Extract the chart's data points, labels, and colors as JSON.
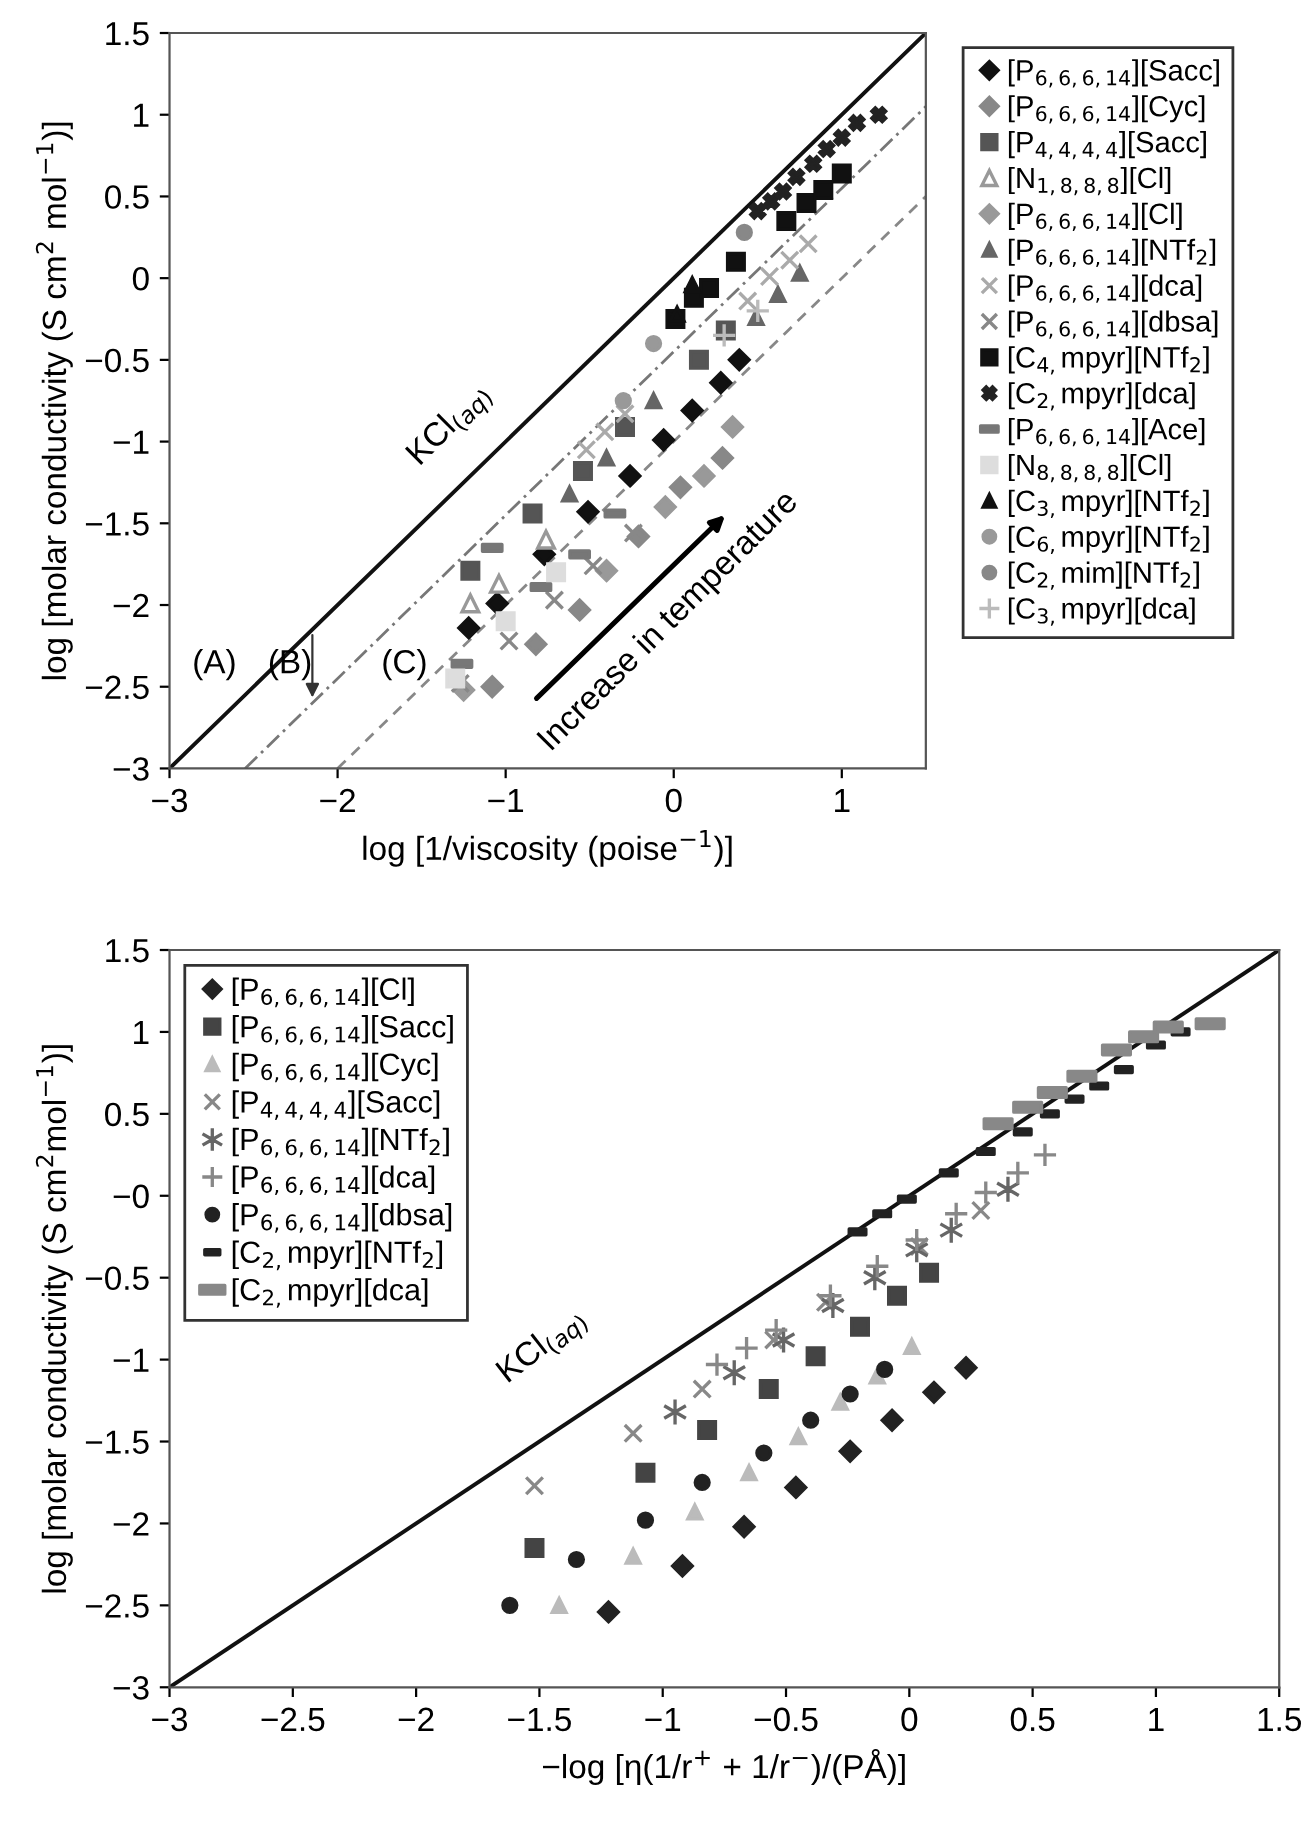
{
  "chart_data": [
    {
      "type": "scatter",
      "xlabel": "log [1/viscosity (poise$^{−1}$)]",
      "ylabel": "log [molar conductivity (S cm$^{2}$ mol$^{−1}$)]",
      "xlim": [
        -3,
        1.5
      ],
      "ylim": [
        -3,
        1.5
      ],
      "xticks": [
        {
          "value": -3,
          "label": "−3"
        },
        {
          "value": -2,
          "label": "−2"
        },
        {
          "value": -1,
          "label": "−1"
        },
        {
          "value": 0,
          "label": "0"
        },
        {
          "value": 1,
          "label": "1"
        }
      ],
      "yticks": [
        {
          "value": -3,
          "label": "−3"
        },
        {
          "value": -2.5,
          "label": "−2.5"
        },
        {
          "value": -2,
          "label": "−2"
        },
        {
          "value": -1.5,
          "label": "−1.5"
        },
        {
          "value": -1,
          "label": "−1"
        },
        {
          "value": -0.5,
          "label": "−0.5"
        },
        {
          "value": 0,
          "label": "0"
        },
        {
          "value": 0.5,
          "label": "0.5"
        },
        {
          "value": 1,
          "label": "1"
        },
        {
          "value": 1.5,
          "label": "1.5"
        }
      ],
      "grid": false,
      "legend": "right",
      "annotations": [
        "KCl$_{(aq)}$",
        "(A)",
        "(B)",
        "(C)",
        "Increase in temperature"
      ],
      "series": [
        {
          "type": "line",
          "color": "#111111",
          "line_style": "solid",
          "x": [
            -3,
            1.5
          ],
          "values": [
            -3,
            1.5
          ]
        },
        {
          "type": "line",
          "color": "#777777",
          "line_style": "dashdot",
          "x": [
            -2.55,
            1.5
          ],
          "values": [
            -3,
            1.05
          ]
        },
        {
          "type": "line",
          "color": "#888888",
          "line_style": "dashed",
          "x": [
            -2.0,
            1.5
          ],
          "values": [
            -3,
            0.5
          ]
        },
        {
          "name": "[P$_{6,6,6,14}$][Sacc]",
          "marker": "diamond",
          "color": "#111111",
          "x": [
            -1.22,
            -1.05,
            -0.77,
            -0.51,
            -0.26,
            -0.06,
            0.11,
            0.28,
            0.39
          ],
          "values": [
            -2.14,
            -1.99,
            -1.69,
            -1.43,
            -1.21,
            -0.99,
            -0.81,
            -0.64,
            -0.5
          ]
        },
        {
          "name": "[P$_{6,6,6,14}$][Cyc]",
          "marker": "diamond",
          "color": "#888888",
          "x": [
            -1.08,
            -0.82,
            -0.56,
            -0.21,
            0.04,
            0.29
          ],
          "values": [
            -2.5,
            -2.24,
            -2.03,
            -1.58,
            -1.28,
            -1.1
          ]
        },
        {
          "name": "[P$_{4,4,4,4}$][Sacc]",
          "marker": "square",
          "color": "#555555",
          "x": [
            -1.21,
            -0.84,
            -0.54,
            -0.29,
            0.15,
            0.31
          ],
          "values": [
            -1.79,
            -1.44,
            -1.18,
            -0.91,
            -0.5,
            -0.32
          ]
        },
        {
          "name": "[N$_{1,8,8,8}$][Cl]",
          "marker": "triangle_open",
          "color": "#999999",
          "x": [
            -1.21,
            -1.04,
            -0.76
          ],
          "values": [
            -1.99,
            -1.87,
            -1.6
          ]
        },
        {
          "name": "[P$_{6,6,6,14}$][Cl]",
          "marker": "diamond",
          "color": "#999999",
          "x": [
            -1.25,
            -0.4,
            -0.05,
            0.18,
            0.35
          ],
          "values": [
            -2.52,
            -1.79,
            -1.4,
            -1.21,
            -0.91
          ]
        },
        {
          "name": "[P$_{6,6,6,14}$][NTf$_{2}$]",
          "marker": "triangle",
          "color": "#666666",
          "x": [
            -0.62,
            -0.4,
            -0.12,
            0.49,
            0.62,
            0.75
          ],
          "values": [
            -1.32,
            -1.1,
            -0.75,
            -0.24,
            -0.1,
            0.03
          ]
        },
        {
          "name": "[P$_{6,6,6,14}$][dca]",
          "marker": "cross",
          "color": "#aaaaaa",
          "x": [
            -0.52,
            -0.41,
            -0.29,
            0.44,
            0.57,
            0.69,
            0.8
          ],
          "values": [
            -1.05,
            -0.94,
            -0.83,
            -0.14,
            0.01,
            0.11,
            0.21
          ]
        },
        {
          "name": "[P$_{6,6,6,14}$][dbsa]",
          "marker": "cross",
          "color": "#888888",
          "x": [
            -1.27,
            -0.98,
            -0.71,
            -0.48,
            -0.24
          ],
          "values": [
            -2.48,
            -2.22,
            -1.97,
            -1.76,
            -1.56
          ]
        },
        {
          "name": "[C$_{4,}$mpyr][NTf$_{2}$]",
          "marker": "square",
          "color": "#111111",
          "x": [
            0.01,
            0.12,
            0.21,
            0.37,
            0.67,
            0.79,
            0.89,
            1.0
          ],
          "values": [
            -0.25,
            -0.12,
            -0.06,
            0.1,
            0.35,
            0.46,
            0.54,
            0.64
          ]
        },
        {
          "name": "[C$_{2,}$mpyr][dca]",
          "marker": "cross",
          "color": "#222222",
          "x": [
            0.5,
            0.58,
            0.65,
            0.73,
            0.83,
            0.91,
            1.0,
            1.09,
            1.22
          ],
          "values": [
            0.41,
            0.47,
            0.53,
            0.62,
            0.7,
            0.79,
            0.86,
            0.95,
            1.0
          ]
        },
        {
          "name": "[P$_{6,6,6,14}$][Ace]",
          "marker": "square",
          "color": "#777777",
          "x": [
            -1.26,
            -1.08,
            -0.79,
            -0.56,
            -0.35
          ],
          "values": [
            -2.36,
            -1.65,
            -1.89,
            -1.69,
            -1.44
          ]
        },
        {
          "name": "[N$_{8,8,8,8}$][Cl]",
          "marker": "square",
          "color": "#dddddd",
          "x": [
            -1.3,
            -1.0,
            -0.7
          ],
          "values": [
            -2.45,
            -2.1,
            -1.8
          ]
        },
        {
          "name": "[C$_{3,}$mpyr][NTf$_{2}$]",
          "marker": "triangle",
          "color": "#111111",
          "x": [
            0.02,
            0.11
          ],
          "values": [
            -0.22,
            -0.04
          ]
        },
        {
          "name": "[C$_{6,}$mpyr][NTf$_{2}$]",
          "marker": "circle",
          "color": "#999999",
          "x": [
            -0.3,
            -0.12
          ],
          "values": [
            -0.75,
            -0.4
          ]
        },
        {
          "name": "[C$_{2,}$mim][NTf$_{2}$]",
          "marker": "circle",
          "color": "#888888",
          "x": [
            0.42
          ],
          "values": [
            0.28
          ]
        },
        {
          "name": "[C$_{3,}$mpyr][dca]",
          "marker": "plus",
          "color": "#bbbbbb",
          "x": [
            0.3,
            0.5
          ],
          "values": [
            -0.35,
            -0.2
          ]
        }
      ]
    },
    {
      "type": "scatter",
      "xlabel": "−log [η(1/r$^{+}$ + 1/r$^{−}$)/(PÅ)]",
      "ylabel": "log [molar conductivity (S cm$^{2}$mol$^{−1}$)]",
      "xlim": [
        -3,
        1.5
      ],
      "ylim": [
        -3,
        1.5
      ],
      "xticks": [
        {
          "value": -3,
          "label": "−3"
        },
        {
          "value": -2.5,
          "label": "−2.5"
        },
        {
          "value": -2,
          "label": "−2"
        },
        {
          "value": -1.5,
          "label": "−1.5"
        },
        {
          "value": -1,
          "label": "−1"
        },
        {
          "value": -0.5,
          "label": "−0.5"
        },
        {
          "value": 0,
          "label": "0"
        },
        {
          "value": 0.5,
          "label": "0.5"
        },
        {
          "value": 1,
          "label": "1"
        },
        {
          "value": 1.5,
          "label": "1.5"
        }
      ],
      "yticks": [
        {
          "value": -3,
          "label": "−3"
        },
        {
          "value": -2.5,
          "label": "−2.5"
        },
        {
          "value": -2,
          "label": "−2"
        },
        {
          "value": -1.5,
          "label": "−1.5"
        },
        {
          "value": -1,
          "label": "−1"
        },
        {
          "value": -0.5,
          "label": "−0.5"
        },
        {
          "value": 0,
          "label": "−0"
        },
        {
          "value": 0.5,
          "label": "0.5"
        },
        {
          "value": 1,
          "label": "1"
        },
        {
          "value": 1.5,
          "label": "1.5"
        }
      ],
      "grid": false,
      "legend": "top left",
      "annotations": [
        "KCl$_{(aq)}$"
      ],
      "series": [
        {
          "type": "line",
          "color": "#111111",
          "line_style": "solid",
          "x": [
            -3,
            1.5
          ],
          "values": [
            -3,
            1.5
          ]
        },
        {
          "name": "[P$_{6,6,6,14}$][Cl]",
          "marker": "diamond",
          "color": "#222222",
          "x": [
            -1.22,
            -0.92,
            -0.67,
            -0.46,
            -0.24,
            -0.07,
            0.1,
            0.23
          ],
          "values": [
            -2.54,
            -2.26,
            -2.02,
            -1.78,
            -1.56,
            -1.37,
            -1.2,
            -1.05
          ]
        },
        {
          "name": "[P$_{6,6,6,14}$][Sacc]",
          "marker": "square",
          "color": "#444444",
          "x": [
            -1.52,
            -1.07,
            -0.82,
            -0.57,
            -0.38,
            -0.2,
            -0.05,
            0.08
          ],
          "values": [
            -2.15,
            -1.69,
            -1.43,
            -1.18,
            -0.98,
            -0.8,
            -0.61,
            -0.47
          ]
        },
        {
          "name": "[P$_{6,6,6,14}$][Cyc]",
          "marker": "triangle",
          "color": "#bbbbbb",
          "x": [
            -1.42,
            -1.12,
            -0.87,
            -0.65,
            -0.45,
            -0.28,
            -0.13,
            0.01
          ],
          "values": [
            -2.5,
            -2.2,
            -1.93,
            -1.69,
            -1.47,
            -1.26,
            -1.1,
            -0.92
          ]
        },
        {
          "name": "[P$_{4,4,4,4}$][Sacc]",
          "marker": "cross",
          "color": "#888888",
          "x": [
            -1.52,
            -1.12,
            -0.84,
            -0.55,
            -0.34,
            0.04,
            0.29
          ],
          "values": [
            -1.77,
            -1.45,
            -1.18,
            -0.88,
            -0.65,
            -0.31,
            -0.09
          ]
        },
        {
          "name": "[P$_{6,6,6,14}$][NTf$_{2}$]",
          "marker": "cross",
          "color": "#666666",
          "x": [
            -0.95,
            -0.71,
            -0.51,
            -0.31,
            -0.14,
            0.03,
            0.17,
            0.4
          ],
          "values": [
            -1.32,
            -1.08,
            -0.88,
            -0.67,
            -0.5,
            -0.33,
            -0.21,
            0.04
          ]
        },
        {
          "name": "[P$_{6,6,6,14}$][dca]",
          "marker": "plus",
          "color": "#888888",
          "x": [
            -0.78,
            -0.66,
            -0.54,
            -0.32,
            -0.13,
            0.03,
            0.19,
            0.31,
            0.44,
            0.55
          ],
          "values": [
            -1.03,
            -0.93,
            -0.82,
            -0.61,
            -0.43,
            -0.27,
            -0.11,
            0.02,
            0.14,
            0.25
          ]
        },
        {
          "name": "[P$_{6,6,6,14}$][dbsa]",
          "marker": "circle",
          "color": "#222222",
          "x": [
            -1.62,
            -1.35,
            -1.07,
            -0.84,
            -0.59,
            -0.4,
            -0.24,
            -0.1
          ],
          "values": [
            -2.5,
            -2.22,
            -1.98,
            -1.75,
            -1.57,
            -1.37,
            -1.21,
            -1.06
          ]
        },
        {
          "name": "[C$_{2,}$mpyr][NTf$_{2}$]",
          "marker": "square",
          "color": "#222222",
          "x": [
            -0.21,
            -0.11,
            -0.01,
            0.16,
            0.31,
            0.46,
            0.57,
            0.67,
            0.77,
            0.87,
            1.0,
            1.1
          ],
          "values": [
            -0.22,
            -0.11,
            -0.02,
            0.14,
            0.27,
            0.39,
            0.5,
            0.59,
            0.67,
            0.77,
            0.92,
            1.0
          ]
        },
        {
          "name": "[C$_{2,}$mpyr][dca]",
          "marker": "square",
          "color": "#888888",
          "x": [
            0.36,
            0.48,
            0.58,
            0.7,
            0.84,
            0.95,
            1.05,
            1.22
          ],
          "values": [
            0.44,
            0.54,
            0.63,
            0.73,
            0.89,
            0.97,
            1.03,
            1.05
          ]
        }
      ]
    }
  ]
}
